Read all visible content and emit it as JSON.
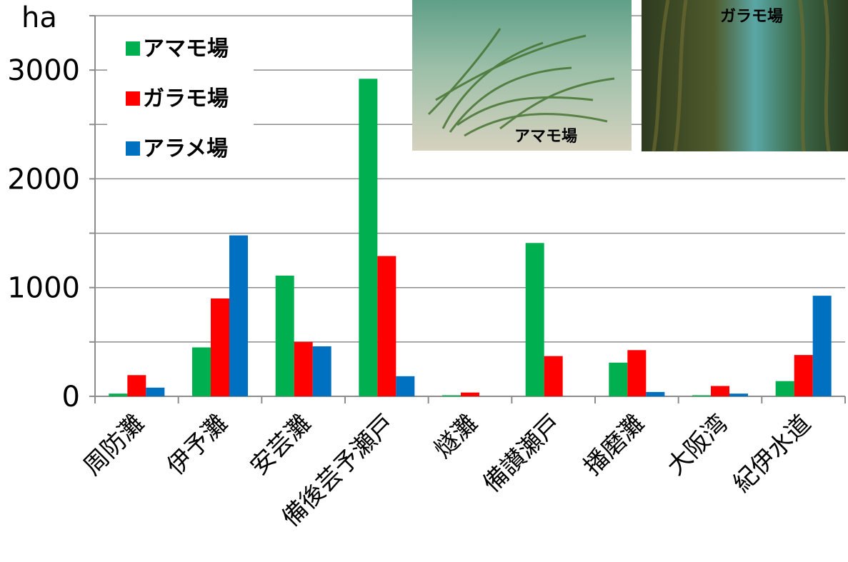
{
  "chart_data": {
    "type": "bar",
    "ylabel": "ha",
    "ylim": [
      0,
      3500
    ],
    "yticks": [
      0,
      1000,
      2000,
      3000
    ],
    "grid": true,
    "legend_position": "top-left",
    "categories": [
      "周防灘",
      "伊予灘",
      "安芸灘",
      "備後芸予瀬戸",
      "燧灘",
      "備讃瀬戸",
      "播磨灘",
      "大阪湾",
      "紀伊水道"
    ],
    "series": [
      {
        "name": "アマモ場",
        "color": "#00b050",
        "values": [
          25,
          450,
          1110,
          2920,
          10,
          1410,
          310,
          10,
          140
        ]
      },
      {
        "name": "ガラモ場",
        "color": "#ff0000",
        "values": [
          195,
          900,
          500,
          1290,
          35,
          370,
          425,
          95,
          380
        ]
      },
      {
        "name": "アラメ場",
        "color": "#0070c0",
        "values": [
          80,
          1480,
          460,
          185,
          0,
          0,
          40,
          25,
          925
        ]
      }
    ]
  },
  "photos": {
    "eelgrass_label": "アマモ場",
    "sargassum_label": "ガラモ場"
  }
}
